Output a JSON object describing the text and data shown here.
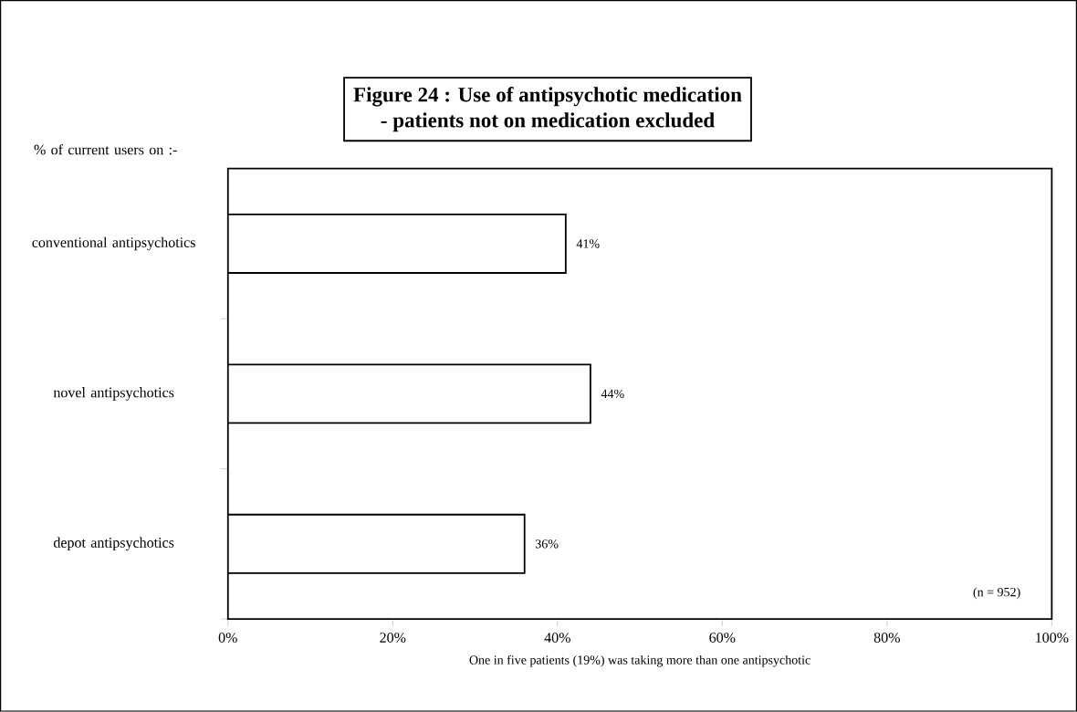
{
  "chart_data": {
    "type": "bar",
    "orientation": "horizontal",
    "title": "Figure 24 : Use of antipsychotic medication",
    "subtitle": "- patients not on medication excluded",
    "ylabel": "% of current users on :-",
    "xlabel": "One in five patients (19%) was taking more than one antipsychotic",
    "categories": [
      "conventional antipsychotics",
      "novel antipsychotics",
      "depot antipsychotics"
    ],
    "values": [
      41,
      44,
      36
    ],
    "value_labels": [
      "41%",
      "44%",
      "36%"
    ],
    "color": "#ffffff",
    "xlim": [
      0,
      100
    ],
    "xticks": [
      {
        "value": 0,
        "label": "0%"
      },
      {
        "value": 20,
        "label": "20%"
      },
      {
        "value": 40,
        "label": "40%"
      },
      {
        "value": 60,
        "label": "60%"
      },
      {
        "value": 80,
        "label": "80%"
      },
      {
        "value": 100,
        "label": "100%"
      }
    ],
    "annotations": [
      "(n = 952)"
    ]
  }
}
